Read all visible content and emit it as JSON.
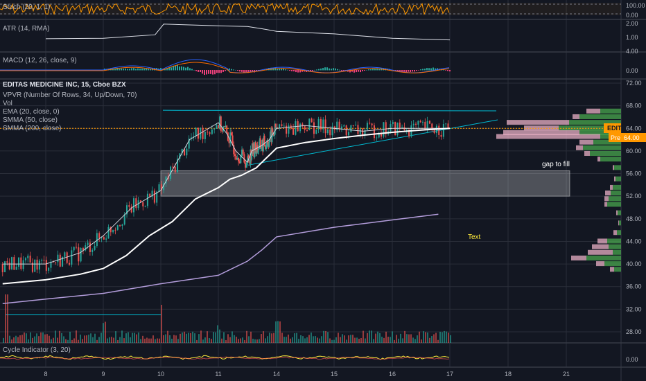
{
  "symbol": {
    "title": "EDITAS MEDICINE INC, 15, Cboe BZX"
  },
  "indicators": {
    "stoch": "Stoch (20, 1, 1)",
    "atr": "ATR (14, RMA)",
    "macd": "MACD (12, 26, close, 9)",
    "vpvr": "VPVR (Number Of Rows, 34, Up/Down, 70)",
    "vol": "Vol",
    "ema": "EMA (20, close, 0)",
    "smma50": "SMMA (50, close)",
    "smma200": "SMMA (200, close)",
    "cycle": "Cycle Indicator (3, 20)"
  },
  "badges": {
    "ticker": "EDIT",
    "pre_label": "Pre",
    "pre_value": "64.00"
  },
  "annotations": {
    "gap": "gap to fill",
    "text": "Text"
  },
  "colors": {
    "bg": "#131722",
    "grid": "#2a2e39",
    "up": "#26a69a",
    "down": "#ef5350",
    "ema": "#d1d4dc",
    "smma50": "#ffffff",
    "smma200": "#b39ddb",
    "trend": "#00bcd4",
    "price_line": "#ff9800",
    "vp_up": "#4caf50",
    "vp_down": "#f8bbd0"
  },
  "chart_data": [
    {
      "name": "Stoch (20, 1, 1)",
      "type": "line",
      "y_ticks": [
        "100.00",
        "0.00"
      ]
    },
    {
      "name": "ATR (14, RMA)",
      "type": "line",
      "y_ticks": [
        "2.00",
        "1.00"
      ],
      "x": [
        8,
        9,
        9.9,
        10.05,
        11,
        12,
        13,
        14,
        15,
        16,
        17
      ],
      "values": [
        0.9,
        0.95,
        1.2,
        2.0,
        1.85,
        1.75,
        1.6,
        1.45,
        1.25,
        0.95,
        0.85
      ]
    },
    {
      "name": "MACD (12, 26, close, 9)",
      "type": "line",
      "y_ticks": [
        "4.00",
        "0.00"
      ]
    },
    {
      "name": "EDITAS MEDICINE INC, 15, Cboe BZX",
      "type": "line",
      "x_ticks": [
        "8",
        "9",
        "10",
        "11",
        "14",
        "15",
        "16",
        "17",
        "18",
        "21"
      ],
      "y_ticks": [
        "72.00",
        "68.00",
        "64.00",
        "60.00",
        "56.00",
        "52.00",
        "48.00",
        "44.00",
        "40.00",
        "36.00",
        "32.00",
        "28.00"
      ],
      "ylim": [
        26,
        73.5
      ],
      "current_price": 64.0,
      "series": [
        {
          "name": "EMA (20, close, 0)",
          "x": [
            7.25,
            8,
            8.6,
            9,
            9.5,
            10,
            10.5,
            11,
            11.3,
            11.6,
            12,
            12.3,
            13,
            13.5,
            14,
            14.5,
            15,
            15.5,
            16,
            16.5,
            17
          ],
          "values": [
            40,
            40,
            42,
            45,
            50,
            53,
            62,
            65,
            63,
            60,
            58,
            60,
            61,
            62,
            64,
            64.5,
            64,
            63.5,
            64,
            64,
            64
          ]
        },
        {
          "name": "SMMA (50, close)",
          "x": [
            7.25,
            8,
            8.6,
            9,
            9.4,
            9.8,
            10.2,
            10.6,
            11,
            11.4,
            11.8,
            12.2,
            12.6,
            13,
            13.6,
            14,
            14.5,
            15,
            15.5,
            16,
            16.5,
            17
          ],
          "values": [
            36.5,
            37.2,
            38.2,
            39.2,
            41.5,
            45,
            47.5,
            51.5,
            53.5,
            55,
            55.7,
            56.5,
            57,
            58,
            59.5,
            60.5,
            61.5,
            62.2,
            62.8,
            63.3,
            63.7,
            64
          ]
        },
        {
          "name": "SMMA (200, close)",
          "x": [
            7.25,
            8,
            9,
            10,
            11,
            12,
            13,
            14,
            15,
            16,
            16.8
          ],
          "values": [
            33,
            33.8,
            34.8,
            36.5,
            38,
            40.5,
            42.5,
            44.8,
            46.5,
            47.8,
            48.8
          ]
        }
      ]
    },
    {
      "name": "Cycle Indicator (3, 20)",
      "type": "line",
      "y_ticks": [
        "0.00"
      ]
    }
  ]
}
